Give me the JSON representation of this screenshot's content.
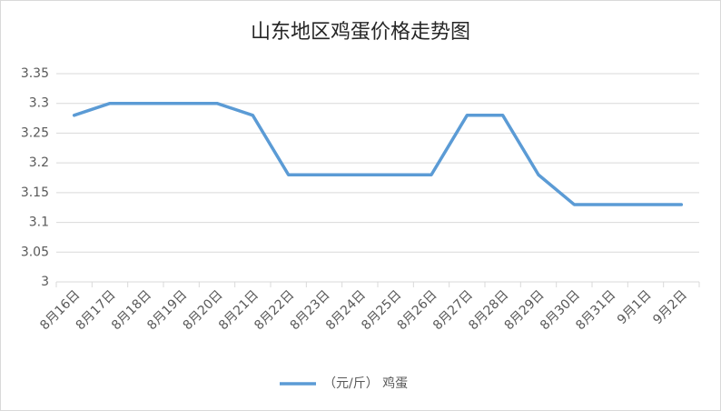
{
  "chart_data": {
    "type": "line",
    "title": "山东地区鸡蛋价格走势图",
    "categories": [
      "8月16日",
      "8月17日",
      "8月18日",
      "8月19日",
      "8月20日",
      "8月21日",
      "8月22日",
      "8月23日",
      "8月24日",
      "8月25日",
      "8月26日",
      "8月27日",
      "8月28日",
      "8月29日",
      "8月30日",
      "8月31日",
      "9月1日",
      "9月2日"
    ],
    "series": [
      {
        "name": "（元/斤） 鸡蛋",
        "color": "#5b9bd5",
        "values": [
          3.28,
          3.3,
          3.3,
          3.3,
          3.3,
          3.28,
          3.18,
          3.18,
          3.18,
          3.18,
          3.18,
          3.28,
          3.28,
          3.18,
          3.13,
          3.13,
          3.13,
          3.13
        ]
      }
    ],
    "ylim": [
      3,
      3.35
    ],
    "yticks": [
      3,
      3.05,
      3.1,
      3.15,
      3.2,
      3.25,
      3.3,
      3.35
    ],
    "grid": true,
    "legend": "bottom"
  }
}
